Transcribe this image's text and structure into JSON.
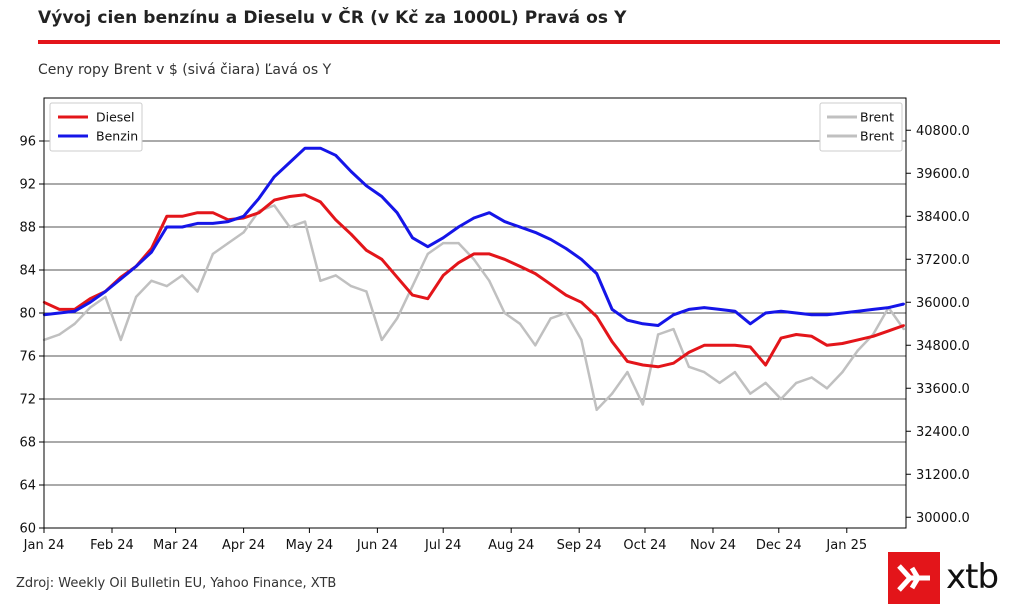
{
  "header": {
    "title": "Vývoj cien benzínu a Dieselu v ČR (v Kč za 1000L) Pravá os Y",
    "subtitle": "Ceny ropy Brent v $ (sivá čiara) Ľavá os Y"
  },
  "footer": {
    "source": "Zdroj: Weekly Oil Bulletin EU, Yahoo Finance, XTB",
    "brand": "xtb"
  },
  "colors": {
    "diesel": "#e3151a",
    "benzin": "#1515e8",
    "brent": "#c0c0c0",
    "accent": "#e3151a"
  },
  "chart_data": {
    "type": "line",
    "x_unit": "date",
    "xlim": [
      "2024-01-01",
      "2025-01-28"
    ],
    "x_tick_labels": [
      "Jan 24",
      "Feb 24",
      "Mar 24",
      "Apr 24",
      "May 24",
      "Jun 24",
      "Jul 24",
      "Aug 24",
      "Sep 24",
      "Oct 24",
      "Nov 24",
      "Dec 24",
      "Jan 25"
    ],
    "left_axis": {
      "ylim": [
        60,
        100
      ],
      "ticks": [
        60,
        64,
        68,
        72,
        76,
        80,
        84,
        88,
        92,
        96
      ],
      "tick_labels": [
        "60",
        "64",
        "68",
        "72",
        "76",
        "80",
        "84",
        "88",
        "92",
        "96"
      ]
    },
    "right_axis": {
      "ylim": [
        29700,
        41700
      ],
      "ticks": [
        30000,
        31200,
        32400,
        33600,
        34800,
        36000,
        37200,
        38400,
        39600,
        40800
      ],
      "tick_labels": [
        "30000.0",
        "31200.0",
        "32400.0",
        "33600.0",
        "34800.0",
        "36000.0",
        "37200.0",
        "38400.0",
        "39600.0",
        "40800.0"
      ]
    },
    "grid": "horizontal",
    "legend_left": {
      "placement": "top-left",
      "entries": [
        "Diesel",
        "Benzin"
      ]
    },
    "legend_right": {
      "placement": "top-right",
      "entries": [
        "Brent",
        "Brent"
      ]
    },
    "series": [
      {
        "name": "Diesel",
        "axis": "right",
        "color": "#e3151a",
        "x": [
          "2024-01-01",
          "2024-01-08",
          "2024-01-15",
          "2024-01-22",
          "2024-01-29",
          "2024-02-05",
          "2024-02-12",
          "2024-02-19",
          "2024-02-26",
          "2024-03-04",
          "2024-03-11",
          "2024-03-18",
          "2024-03-25",
          "2024-04-01",
          "2024-04-08",
          "2024-04-15",
          "2024-04-22",
          "2024-04-29",
          "2024-05-06",
          "2024-05-13",
          "2024-05-20",
          "2024-05-27",
          "2024-06-03",
          "2024-06-10",
          "2024-06-17",
          "2024-06-24",
          "2024-07-01",
          "2024-07-08",
          "2024-07-15",
          "2024-07-22",
          "2024-07-29",
          "2024-08-05",
          "2024-08-12",
          "2024-08-19",
          "2024-08-26",
          "2024-09-02",
          "2024-09-09",
          "2024-09-16",
          "2024-09-23",
          "2024-09-30",
          "2024-10-07",
          "2024-10-14",
          "2024-10-21",
          "2024-10-28",
          "2024-11-04",
          "2024-11-11",
          "2024-11-18",
          "2024-11-25",
          "2024-12-02",
          "2024-12-09",
          "2024-12-16",
          "2024-12-23",
          "2024-12-30",
          "2025-01-06",
          "2025-01-13",
          "2025-01-20",
          "2025-01-27"
        ],
        "y": [
          36000,
          35800,
          35800,
          36100,
          36300,
          36700,
          37000,
          37500,
          38400,
          38400,
          38500,
          38500,
          38300,
          38350,
          38500,
          38850,
          38950,
          39000,
          38800,
          38300,
          37900,
          37450,
          37200,
          36700,
          36200,
          36100,
          36750,
          37100,
          37350,
          37350,
          37200,
          37000,
          36800,
          36500,
          36200,
          36000,
          35600,
          34900,
          34350,
          34250,
          34200,
          34300,
          34600,
          34800,
          34800,
          34800,
          34750,
          34250,
          35000,
          35100,
          35050,
          34800,
          34850,
          34950,
          35050,
          35200,
          35350
        ]
      },
      {
        "name": "Benzin",
        "axis": "right",
        "color": "#1515e8",
        "x": [
          "2024-01-01",
          "2024-01-08",
          "2024-01-15",
          "2024-01-22",
          "2024-01-29",
          "2024-02-05",
          "2024-02-12",
          "2024-02-19",
          "2024-02-26",
          "2024-03-04",
          "2024-03-11",
          "2024-03-18",
          "2024-03-25",
          "2024-04-01",
          "2024-04-08",
          "2024-04-15",
          "2024-04-22",
          "2024-04-29",
          "2024-05-06",
          "2024-05-13",
          "2024-05-20",
          "2024-05-27",
          "2024-06-03",
          "2024-06-10",
          "2024-06-17",
          "2024-06-24",
          "2024-07-01",
          "2024-07-08",
          "2024-07-15",
          "2024-07-22",
          "2024-07-29",
          "2024-08-05",
          "2024-08-12",
          "2024-08-19",
          "2024-08-26",
          "2024-09-02",
          "2024-09-09",
          "2024-09-16",
          "2024-09-23",
          "2024-09-30",
          "2024-10-07",
          "2024-10-14",
          "2024-10-21",
          "2024-10-28",
          "2024-11-04",
          "2024-11-11",
          "2024-11-18",
          "2024-11-25",
          "2024-12-02",
          "2024-12-09",
          "2024-12-16",
          "2024-12-23",
          "2024-12-30",
          "2025-01-06",
          "2025-01-13",
          "2025-01-20",
          "2025-01-27"
        ],
        "y": [
          35650,
          35700,
          35750,
          36000,
          36300,
          36650,
          37000,
          37400,
          38100,
          38100,
          38200,
          38200,
          38250,
          38400,
          38900,
          39500,
          39900,
          40300,
          40300,
          40100,
          39650,
          39250,
          38950,
          38500,
          37800,
          37550,
          37800,
          38100,
          38350,
          38500,
          38250,
          38100,
          37950,
          37750,
          37500,
          37200,
          36800,
          35800,
          35500,
          35400,
          35350,
          35650,
          35800,
          35850,
          35800,
          35750,
          35400,
          35700,
          35750,
          35700,
          35650,
          35650,
          35700,
          35750,
          35800,
          35850,
          35950
        ]
      },
      {
        "name": "Brent",
        "axis": "left",
        "color": "#c0c0c0",
        "x": [
          "2024-01-01",
          "2024-01-08",
          "2024-01-15",
          "2024-01-22",
          "2024-01-29",
          "2024-02-05",
          "2024-02-12",
          "2024-02-19",
          "2024-02-26",
          "2024-03-04",
          "2024-03-11",
          "2024-03-18",
          "2024-03-25",
          "2024-04-01",
          "2024-04-08",
          "2024-04-15",
          "2024-04-22",
          "2024-04-29",
          "2024-05-06",
          "2024-05-13",
          "2024-05-20",
          "2024-05-27",
          "2024-06-03",
          "2024-06-10",
          "2024-06-17",
          "2024-06-24",
          "2024-07-01",
          "2024-07-08",
          "2024-07-15",
          "2024-07-22",
          "2024-07-29",
          "2024-08-05",
          "2024-08-12",
          "2024-08-19",
          "2024-08-26",
          "2024-09-02",
          "2024-09-09",
          "2024-09-16",
          "2024-09-23",
          "2024-09-30",
          "2024-10-07",
          "2024-10-14",
          "2024-10-21",
          "2024-10-28",
          "2024-11-04",
          "2024-11-11",
          "2024-11-18",
          "2024-11-25",
          "2024-12-02",
          "2024-12-09",
          "2024-12-16",
          "2024-12-23",
          "2024-12-30",
          "2025-01-06",
          "2025-01-13",
          "2025-01-20",
          "2025-01-27"
        ],
        "y": [
          77.5,
          78.0,
          79.0,
          80.5,
          81.5,
          77.5,
          81.5,
          83.0,
          82.5,
          83.5,
          82.0,
          85.5,
          86.5,
          87.5,
          89.5,
          90.0,
          88.0,
          88.5,
          83.0,
          83.5,
          82.5,
          82.0,
          77.5,
          79.5,
          82.5,
          85.5,
          86.5,
          86.5,
          85.0,
          83.0,
          80.0,
          79.0,
          77.0,
          79.5,
          80.0,
          77.5,
          71.0,
          72.5,
          74.5,
          71.5,
          78.0,
          78.5,
          75.0,
          74.5,
          73.5,
          74.5,
          72.5,
          73.5,
          72.0,
          73.5,
          74.0,
          73.0,
          74.5,
          76.5,
          78.0,
          80.5,
          78.5
        ]
      }
    ]
  }
}
